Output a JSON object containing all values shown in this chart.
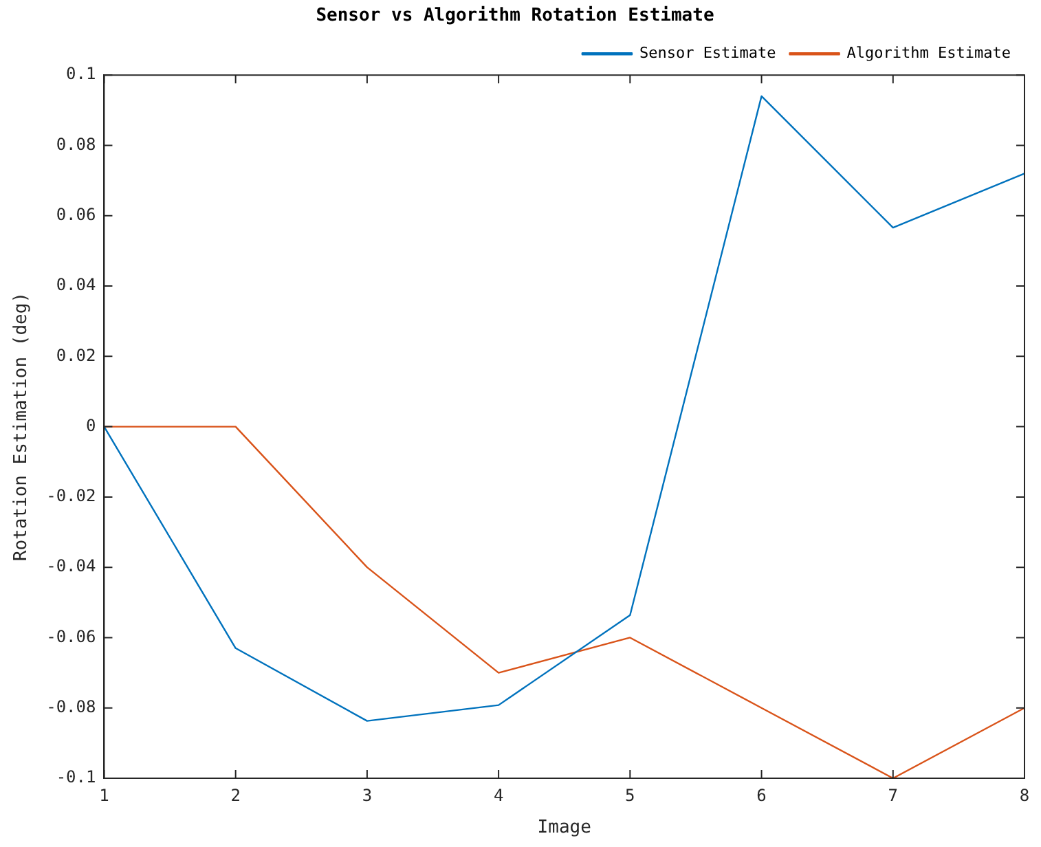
{
  "chart_data": {
    "type": "line",
    "title": "Sensor vs Algorithm Rotation Estimate",
    "xlabel": "Image",
    "ylabel": "Rotation Estimation (deg)",
    "x": [
      1,
      2,
      3,
      4,
      5,
      6,
      7,
      8
    ],
    "series": [
      {
        "name": "Sensor Estimate",
        "color": "#0072bd",
        "values": [
          0,
          -0.063,
          -0.0837,
          -0.0792,
          -0.0536,
          0.094,
          0.0566,
          0.072
        ]
      },
      {
        "name": "Algorithm Estimate",
        "color": "#d95319",
        "values": [
          0,
          0,
          -0.04,
          -0.07,
          -0.06,
          -0.08,
          -0.1,
          -0.08
        ]
      }
    ],
    "xlim": [
      1,
      8
    ],
    "xticks": [
      1,
      2,
      3,
      4,
      5,
      6,
      7,
      8
    ],
    "ylim": [
      -0.1,
      0.1
    ],
    "yticks": [
      -0.1,
      -0.08,
      -0.06,
      -0.04,
      -0.02,
      0,
      0.02,
      0.04,
      0.06,
      0.08,
      0.1
    ],
    "grid": false,
    "legend": "top right",
    "marker": "none",
    "line_style": "solid"
  }
}
